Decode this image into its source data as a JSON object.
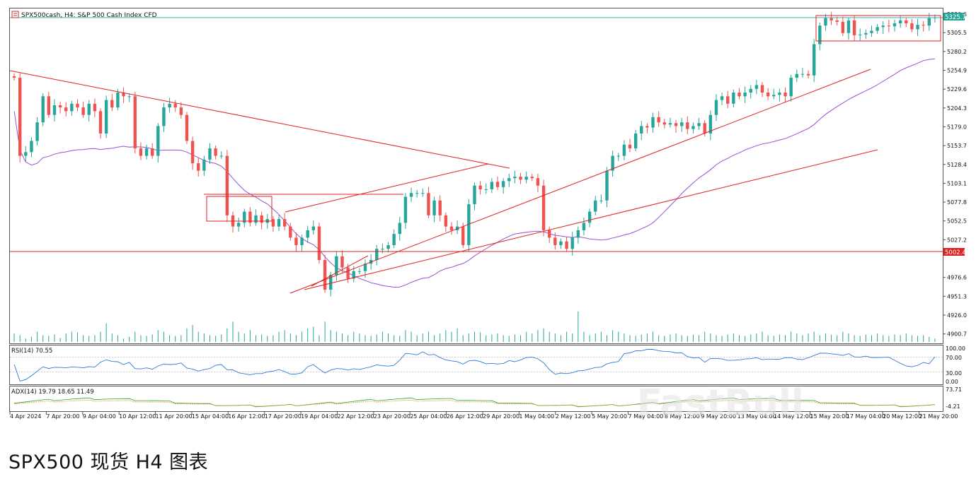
{
  "header": {
    "symbol": "SPX500cash, H4:  S&P 500 Cash Index CFD"
  },
  "caption": "SPX500 现货 H4 图表",
  "watermark": "FastBull",
  "colors": {
    "bull": "#26a69a",
    "bear": "#ef5350",
    "trend": "#e02020",
    "ma": "#9c4fd1",
    "indicator": "#2b7bd6",
    "grid": "#000000"
  },
  "chart_data": [
    {
      "type": "candlestick",
      "title": "SPX500cash, H4:  S&P 500 Cash Index CFD",
      "y_ticks": [
        "5330.6",
        "5305.5",
        "5280.2",
        "5254.9",
        "5229.6",
        "5204.3",
        "5179.0",
        "5153.7",
        "5128.4",
        "5103.1",
        "5077.8",
        "5052.5",
        "5027.2",
        "4976.6",
        "4951.3",
        "4926.0",
        "4900.7"
      ],
      "ylim": [
        4888,
        5338
      ],
      "current_price": "5325.7",
      "support_price": "5002.4",
      "x_ticks": [
        "4 Apr 2024",
        "7 Apr 20:00",
        "9 Apr 04:00",
        "10 Apr 12:00",
        "11 Apr 20:00",
        "15 Apr 04:00",
        "16 Apr 12:00",
        "17 Apr 20:00",
        "19 Apr 04:00",
        "22 Apr 12:00",
        "23 Apr 20:00",
        "25 Apr 04:00",
        "26 Apr 12:00",
        "29 Apr 20:00",
        "1 May 04:00",
        "2 May 12:00",
        "5 May 20:00",
        "7 May 04:00",
        "8 May 12:00",
        "9 May 20:00",
        "13 May 04:00",
        "14 May 12:00",
        "15 May 20:00",
        "17 May 04:00",
        "20 May 12:00",
        "21 May 20:00"
      ],
      "close": [
        5245,
        5140,
        5145,
        5160,
        5185,
        5220,
        5195,
        5208,
        5205,
        5200,
        5210,
        5205,
        5195,
        5210,
        5200,
        5170,
        5215,
        5205,
        5225,
        5220,
        5220,
        5150,
        5140,
        5150,
        5140,
        5180,
        5205,
        5210,
        5205,
        5195,
        5160,
        5130,
        5120,
        5135,
        5150,
        5140,
        5140,
        5060,
        5045,
        5050,
        5065,
        5050,
        5060,
        5050,
        5055,
        5045,
        5055,
        5045,
        5030,
        5020,
        5030,
        5040,
        5045,
        5000,
        4960,
        4980,
        5005,
        4990,
        4975,
        4985,
        4985,
        4995,
        5000,
        5015,
        5015,
        5020,
        5035,
        5050,
        5085,
        5090,
        5090,
        5090,
        5060,
        5080,
        5060,
        5045,
        5040,
        5045,
        5020,
        5075,
        5100,
        5095,
        5095,
        5105,
        5098,
        5106,
        5110,
        5112,
        5108,
        5112,
        5110,
        5100,
        5040,
        5030,
        5020,
        5025,
        5015,
        5030,
        5040,
        5050,
        5065,
        5080,
        5080,
        5120,
        5140,
        5140,
        5155,
        5150,
        5170,
        5180,
        5178,
        5192,
        5185,
        5182,
        5184,
        5180,
        5185,
        5176,
        5180,
        5184,
        5170,
        5195,
        5215,
        5220,
        5210,
        5225,
        5220,
        5225,
        5230,
        5235,
        5225,
        5220,
        5222,
        5225,
        5220,
        5245,
        5250,
        5250,
        5248,
        5290,
        5315,
        5325,
        5322,
        5320,
        5305,
        5322,
        5302,
        5303,
        5305,
        5308,
        5313,
        5315,
        5314,
        5318,
        5322,
        5318,
        5310,
        5316,
        5315,
        5325,
        5326
      ],
      "series": [
        {
          "name": "RSI(14) 70.55",
          "levels": [
            "100.00",
            "70.00",
            "30.00",
            "0.00"
          ]
        },
        {
          "name": "ADX(14) 19.79 18.65 11.49",
          "levels": [
            "73.71",
            "-4.21"
          ]
        }
      ],
      "volume": [
        0.25,
        0.2,
        0.1,
        0.15,
        0.3,
        0.2,
        0.18,
        0.22,
        0.12,
        0.25,
        0.3,
        0.28,
        0.2,
        0.18,
        0.2,
        0.3,
        0.55,
        0.25,
        0.2,
        0.1,
        0.15,
        0.3,
        0.2,
        0.18,
        0.22,
        0.35,
        0.3,
        0.2,
        0.18,
        0.2,
        0.4,
        0.5,
        0.3,
        0.25,
        0.2,
        0.18,
        0.22,
        0.4,
        0.6,
        0.3,
        0.25,
        0.35,
        0.2,
        0.22,
        0.18,
        0.2,
        0.3,
        0.35,
        0.25,
        0.2,
        0.3,
        0.4,
        0.45,
        0.2,
        0.6,
        0.35,
        0.3,
        0.25,
        0.2,
        0.3,
        0.25,
        0.2,
        0.18,
        0.22,
        0.3,
        0.25,
        0.2,
        0.18,
        0.35,
        0.3,
        0.2,
        0.25,
        0.3,
        0.2,
        0.25,
        0.35,
        0.3,
        0.4,
        0.2,
        0.25,
        0.3,
        0.28,
        0.2,
        0.22,
        0.25,
        0.2,
        0.18,
        0.22,
        0.2,
        0.3,
        0.25,
        0.35,
        0.4,
        0.3,
        0.25,
        0.2,
        0.3,
        0.25,
        0.9,
        0.3,
        0.2,
        0.25,
        0.3,
        0.2,
        0.35,
        0.3,
        0.25,
        0.2,
        0.18,
        0.22,
        0.25,
        0.3,
        0.2,
        0.18,
        0.22,
        0.25,
        0.2,
        0.18,
        0.22,
        0.2,
        0.3,
        0.25,
        0.2,
        0.18,
        0.22,
        0.25,
        0.2,
        0.18,
        0.22,
        0.25,
        0.3,
        0.2,
        0.18,
        0.22,
        0.2,
        0.3,
        0.25,
        0.2,
        0.25,
        0.3,
        0.2,
        0.25,
        0.22,
        0.2,
        0.3,
        0.25,
        0.2,
        0.18,
        0.22,
        0.2,
        0.25,
        0.2,
        0.18,
        0.22,
        0.2,
        0.25,
        0.2,
        0.18,
        0.2,
        0.15,
        0.1
      ]
    }
  ]
}
